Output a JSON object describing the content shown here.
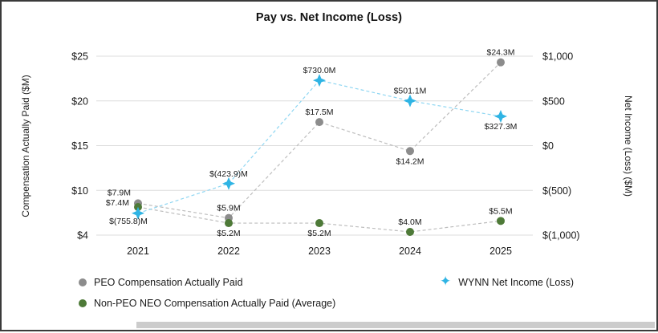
{
  "chart_data": {
    "type": "line",
    "title": "Pay vs. Net Income (Loss)",
    "categories": [
      "2021",
      "2022",
      "2023",
      "2024",
      "2025"
    ],
    "grid": true,
    "grid_color": "#dcdcdc",
    "text_color": "#1a1a1a",
    "legend_position": "bottom",
    "axes": {
      "left": {
        "label": "Compensation Actually Paid ($M)",
        "tick_labels": [
          "$25",
          "$20",
          "$15",
          "$10",
          "$4"
        ],
        "tick_values": [
          25,
          20,
          15,
          10,
          4
        ]
      },
      "right": {
        "label": "Net Income (Loss) ($M)",
        "tick_labels": [
          "$1,000",
          "$500",
          "$0",
          "$(500)",
          "$(1,000)"
        ],
        "tick_values": [
          1000,
          500,
          0,
          -500,
          -1000
        ]
      }
    },
    "series": [
      {
        "name": "PEO Compensation Actually Paid",
        "axis": "left",
        "marker": "circle",
        "color": "#8c8c8c",
        "line_color": "#bdbdbd",
        "values": [
          7.9,
          5.9,
          17.5,
          14.2,
          24.3
        ],
        "point_labels": [
          "$7.9M",
          "$5.9M",
          "$17.5M",
          "$14.2M",
          "$24.3M"
        ],
        "label_placements": [
          "above-left",
          "above",
          "above",
          "below",
          "above"
        ]
      },
      {
        "name": "Non-PEO NEO Compensation Actually Paid (Average)",
        "axis": "left",
        "marker": "circle",
        "color": "#4e7a38",
        "line_color": "#bdbdbd",
        "values": [
          7.4,
          5.2,
          5.2,
          4.0,
          5.5
        ],
        "point_labels": [
          "$7.4M",
          "$5.2M",
          "$5.2M",
          "$4.0M",
          "$5.5M"
        ],
        "label_placements": [
          "left",
          "below",
          "below",
          "above",
          "above"
        ]
      },
      {
        "name": "WYNN Net Income (Loss)",
        "axis": "right",
        "marker": "star",
        "color": "#2fb4e4",
        "line_color": "#8ed6f2",
        "values": [
          -755.8,
          -423.9,
          730.0,
          501.1,
          327.3
        ],
        "point_labels": [
          "$(755.8)M",
          "$(423.9)M",
          "$730.0M",
          "$501.1M",
          "$327.3M"
        ],
        "label_placements": [
          "below-left",
          "above",
          "above",
          "above",
          "below"
        ]
      }
    ],
    "legend_order": [
      0,
      2,
      1
    ]
  }
}
